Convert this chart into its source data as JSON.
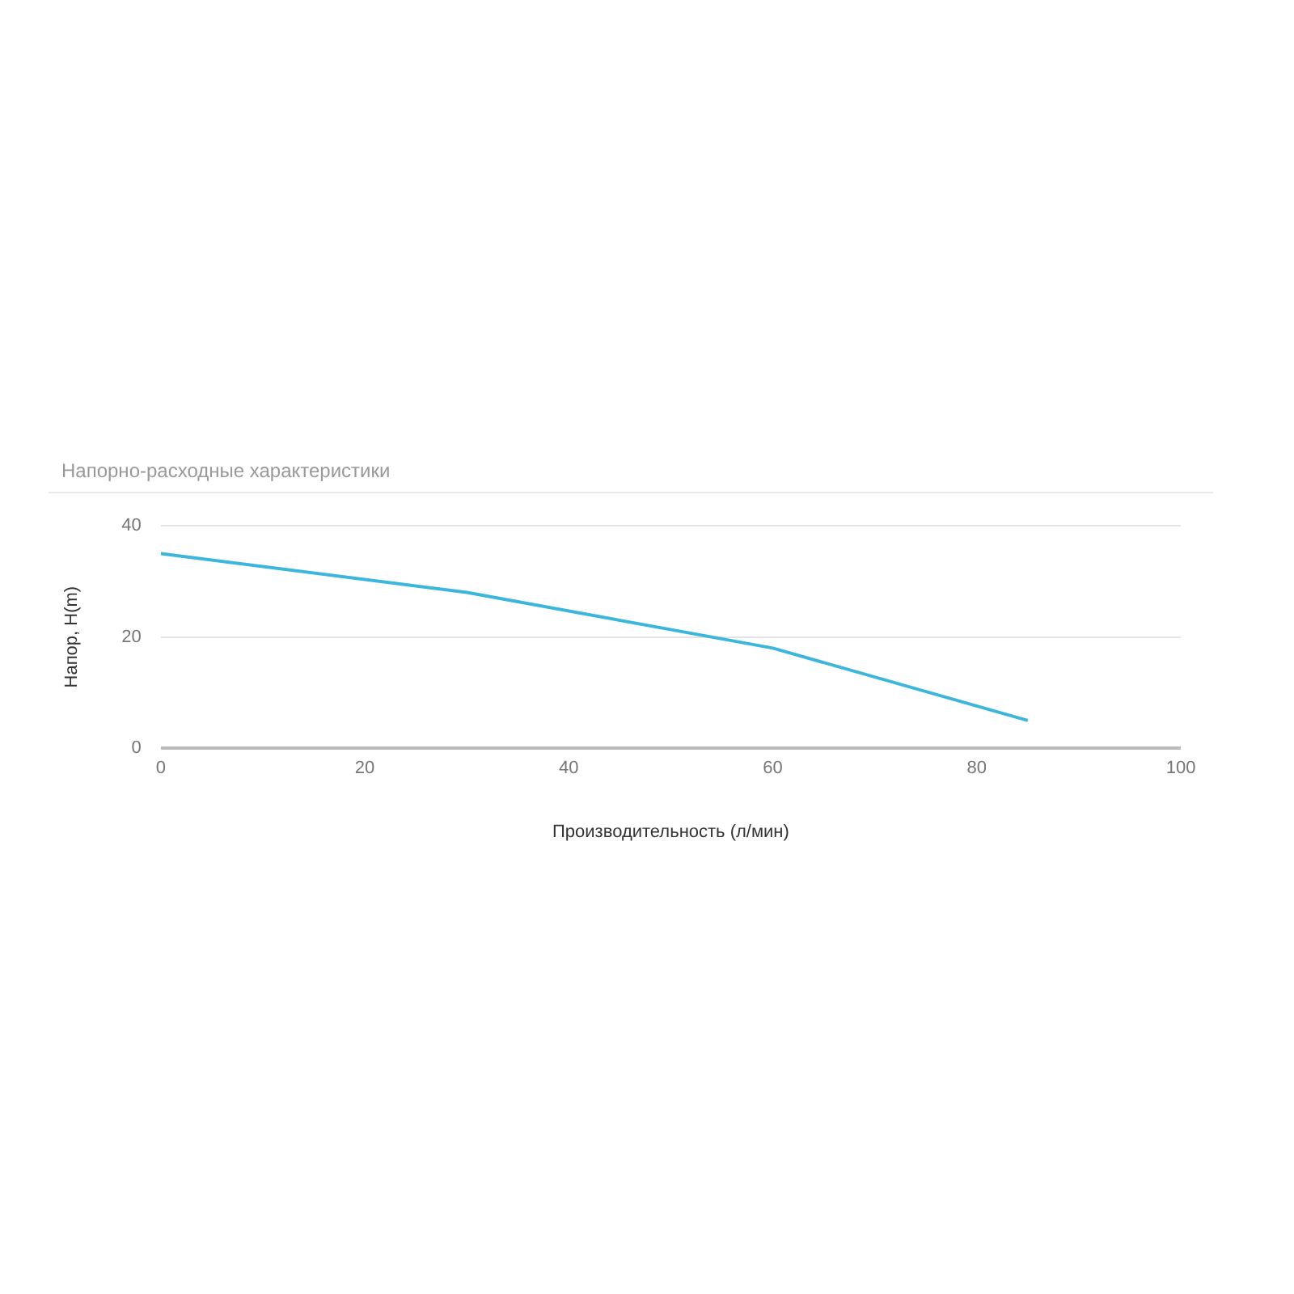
{
  "chart_data": {
    "type": "line",
    "title": "Напорно-расходные характеристики",
    "xlabel": "Производительность (л/мин)",
    "ylabel": "Напор, H(m)",
    "x": [
      0,
      30,
      60,
      85
    ],
    "series": [
      {
        "color": "#3cb6dc",
        "values": [
          35,
          28,
          18,
          5
        ]
      }
    ],
    "xlim": [
      0,
      100
    ],
    "xticks": [
      0,
      20,
      40,
      60,
      80,
      100
    ],
    "ylim": [
      0,
      40
    ],
    "yticks": [
      0,
      20,
      40
    ],
    "grid": "y",
    "legend": false,
    "marker": "none",
    "line_style": "solid"
  }
}
